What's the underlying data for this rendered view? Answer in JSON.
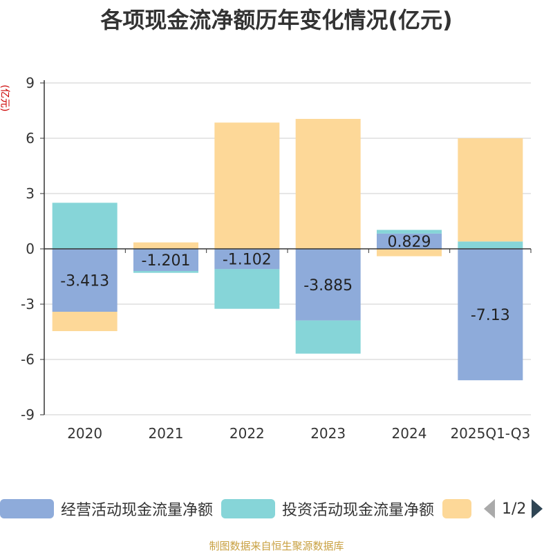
{
  "colors": {
    "operating": "#8eabda",
    "investing": "#86d5d8",
    "financing": "#fdd898",
    "axis": "#333333",
    "grid": "#cccccc",
    "title": "#333333",
    "unit": "#cc0000",
    "source": "#c8a040"
  },
  "chart_data": {
    "type": "bar",
    "stacked": true,
    "title": "各项现金流净额历年变化情况(亿元)",
    "ylabel": "(亿元)",
    "ylim": [
      -9,
      9
    ],
    "yticks": [
      "9",
      "6",
      "3",
      "0",
      "-3",
      "-6",
      "-9"
    ],
    "ytick_values": [
      9,
      6,
      3,
      0,
      -3,
      -6,
      -9
    ],
    "grid": true,
    "categories": [
      "2020",
      "2021",
      "2022",
      "2023",
      "2024",
      "2025Q1-Q3"
    ],
    "series": [
      {
        "name": "经营活动现金流量净额",
        "key": "operating",
        "values": [
          -3.413,
          -1.201,
          -1.102,
          -3.885,
          0.829,
          -7.13
        ],
        "labels": [
          "-3.413",
          "-1.201",
          "-1.102",
          "-3.885",
          "0.829",
          "-7.13"
        ]
      },
      {
        "name": "投资活动现金流量净额",
        "key": "investing",
        "values": [
          2.5,
          -0.1,
          -2.15,
          -1.8,
          0.2,
          0.4
        ]
      },
      {
        "name": "",
        "key": "financing",
        "values": [
          -1.05,
          0.35,
          6.85,
          7.05,
          -0.4,
          5.6
        ]
      }
    ]
  },
  "legend": {
    "items": [
      "经营活动现金流量净额",
      "投资活动现金流量净额",
      ""
    ],
    "page": "1/2"
  },
  "source": "制图数据来自恒生聚源数据库"
}
